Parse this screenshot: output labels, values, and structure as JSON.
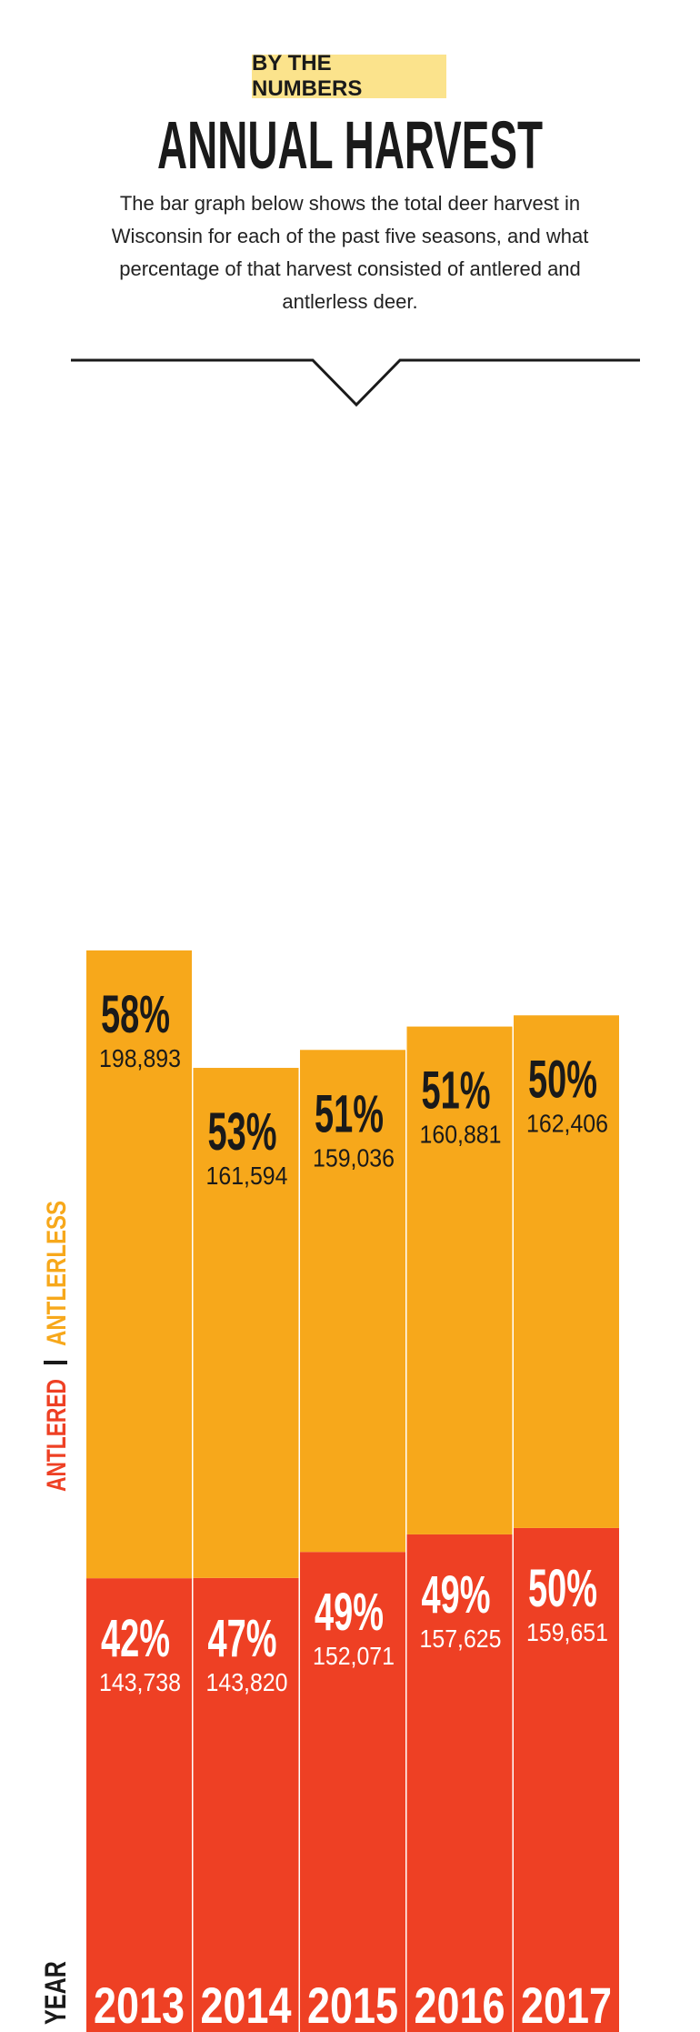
{
  "header": {
    "kicker": "BY THE NUMBERS",
    "title": "ANNUAL HARVEST",
    "description": "The bar graph below shows the total deer harvest in Wisconsin for each of the past five seasons, and what percentage of that harvest consisted of antlered and antlerless deer."
  },
  "colors": {
    "antlerless": "#f7a81b",
    "antlered": "#ee4024",
    "text_dark": "#1a1a1a",
    "text_light": "#ffffff"
  },
  "chart_data": {
    "type": "bar",
    "stacked": true,
    "categories": [
      "2013",
      "2014",
      "2015",
      "2016",
      "2017"
    ],
    "xlabel": "YEAR",
    "series": [
      {
        "name": "ANTLERED",
        "values": [
          143738,
          143820,
          152071,
          157625,
          159651
        ],
        "value_labels": [
          "143,738",
          "143,820",
          "152,071",
          "157,625",
          "159,651"
        ],
        "percents": [
          "42%",
          "47%",
          "49%",
          "49%",
          "50%"
        ]
      },
      {
        "name": "ANTLERLESS",
        "values": [
          198893,
          161594,
          159036,
          160881,
          162406
        ],
        "value_labels": [
          "198,893",
          "161,594",
          "159,036",
          "160,881",
          "162,406"
        ],
        "percents": [
          "58%",
          "53%",
          "51%",
          "51%",
          "50%"
        ]
      }
    ],
    "legend_position": "left-vertical",
    "grid": false
  }
}
